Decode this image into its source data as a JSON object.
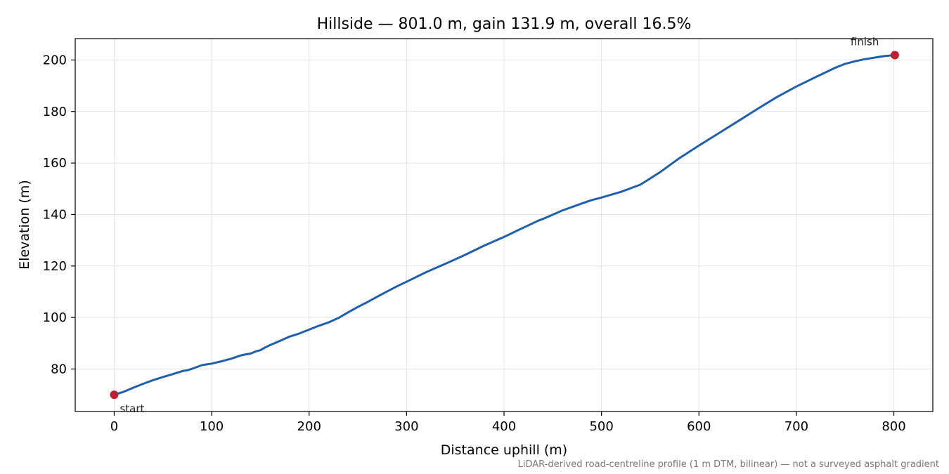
{
  "chart_data": {
    "type": "line",
    "title": "Hillside — 801.0 m, gain 131.9 m, overall 16.5%",
    "xlabel": "Distance uphill (m)",
    "ylabel": "Elevation (m)",
    "xlim": [
      -40,
      840
    ],
    "ylim": [
      63.5,
      208.3
    ],
    "xticks": [
      0,
      100,
      200,
      300,
      400,
      500,
      600,
      700,
      800
    ],
    "yticks": [
      80,
      100,
      120,
      140,
      160,
      180,
      200
    ],
    "grid": true,
    "line_color": "#1f5fad",
    "marker_color": "#c0202f",
    "series": [
      {
        "x": [
          0,
          10,
          20,
          30,
          40,
          50,
          60,
          70,
          75,
          80,
          90,
          95,
          100,
          110,
          120,
          130,
          135,
          140,
          145,
          150,
          155,
          160,
          170,
          180,
          190,
          200,
          210,
          220,
          230,
          240,
          250,
          260,
          270,
          280,
          290,
          300,
          320,
          340,
          360,
          380,
          400,
          420,
          435,
          440,
          460,
          480,
          490,
          500,
          520,
          540,
          560,
          580,
          600,
          620,
          640,
          660,
          680,
          700,
          720,
          740,
          750,
          760,
          770,
          780,
          790,
          801
        ],
        "y": [
          70.0,
          71.2,
          72.8,
          74.3,
          75.7,
          76.9,
          78.0,
          79.2,
          79.5,
          80.1,
          81.5,
          81.8,
          82.1,
          83.0,
          84.0,
          85.3,
          85.7,
          86.0,
          86.8,
          87.3,
          88.4,
          89.3,
          90.9,
          92.6,
          93.8,
          95.3,
          96.8,
          98.1,
          99.8,
          102.0,
          104.1,
          106.0,
          108.1,
          110.1,
          112.1,
          113.9,
          117.6,
          120.9,
          124.3,
          128.0,
          131.3,
          134.9,
          137.6,
          138.3,
          141.6,
          144.3,
          145.6,
          146.6,
          148.8,
          151.6,
          156.4,
          161.9,
          166.8,
          171.5,
          176.2,
          181.0,
          185.6,
          189.7,
          193.4,
          197.0,
          198.5,
          199.5,
          200.3,
          200.9,
          201.5,
          201.9
        ]
      }
    ],
    "annotations": [
      {
        "text": "start",
        "x": 0,
        "y": 70.0
      },
      {
        "text": "finish",
        "x": 801,
        "y": 201.9
      }
    ],
    "footnote": "LiDAR-derived road-centreline profile (1 m DTM, bilinear) — not a surveyed asphalt gradient"
  }
}
